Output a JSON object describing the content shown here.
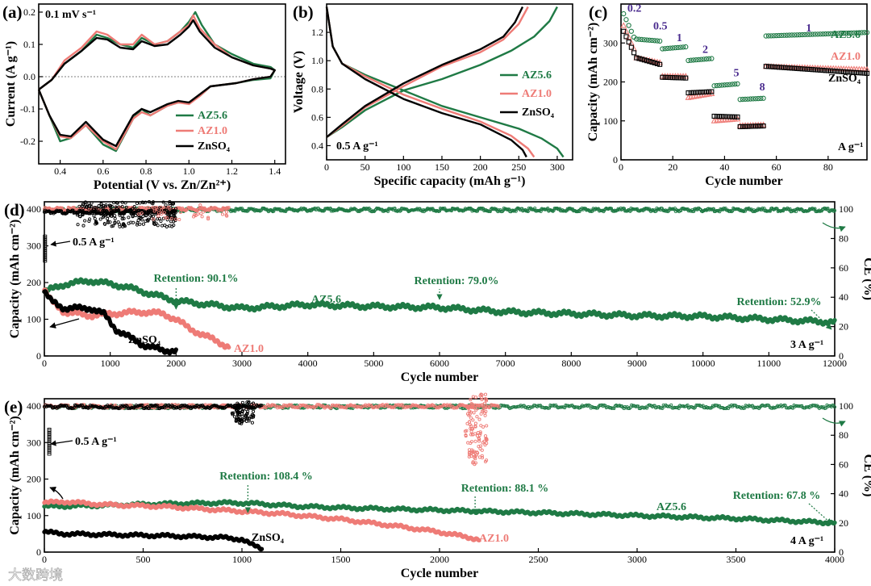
{
  "colors": {
    "az56": "#1f7a45",
    "az10": "#ee7b76",
    "znso4": "#000000",
    "c_label": "#4b2c8f"
  },
  "watermark": "大数跨境",
  "chart_data": [
    {
      "id": "a",
      "panel_label": "(a)",
      "type": "line",
      "title": "0.1 mV s⁻¹",
      "xlabel": "Potential (V vs. Zn/Zn²⁺)",
      "ylabel": "Current (A g⁻¹)",
      "xlim": [
        0.3,
        1.45
      ],
      "ylim": [
        -0.27,
        0.225
      ],
      "xticks": [
        0.4,
        0.6,
        0.8,
        1.0,
        1.2,
        1.4
      ],
      "yticks": [
        -0.2,
        -0.1,
        0.0,
        0.1,
        0.2
      ],
      "xtick_labels": [
        "0.4",
        "0.6",
        "0.8",
        "1.0",
        "1.2",
        "1.4"
      ],
      "ytick_labels": [
        "-0.2",
        "-0.1",
        "0.0",
        "0.1",
        "0.2"
      ],
      "legend": [
        "AZ5.6",
        "AZ1.0",
        "ZnSO₄"
      ],
      "series": [
        {
          "name": "AZ5.6",
          "x": [
            0.3,
            0.36,
            0.42,
            0.5,
            0.57,
            0.62,
            0.68,
            0.74,
            0.78,
            0.84,
            0.9,
            0.96,
            1.0,
            1.03,
            1.06,
            1.12,
            1.2,
            1.3,
            1.38,
            1.4,
            1.38,
            1.3,
            1.22,
            1.1,
            1.05,
            1.0,
            0.95,
            0.9,
            0.82,
            0.78,
            0.74,
            0.66,
            0.6,
            0.52,
            0.45,
            0.4,
            0.35,
            0.3
          ],
          "y": [
            -0.04,
            -0.01,
            0.04,
            0.08,
            0.13,
            0.12,
            0.1,
            0.09,
            0.12,
            0.1,
            0.11,
            0.14,
            0.17,
            0.2,
            0.16,
            0.1,
            0.07,
            0.04,
            0.03,
            0.02,
            -0.005,
            -0.01,
            -0.02,
            -0.03,
            -0.06,
            -0.08,
            -0.08,
            -0.09,
            -0.12,
            -0.1,
            -0.13,
            -0.23,
            -0.21,
            -0.15,
            -0.19,
            -0.2,
            -0.12,
            -0.04
          ]
        },
        {
          "name": "AZ1.0",
          "x": [
            0.3,
            0.36,
            0.42,
            0.5,
            0.57,
            0.62,
            0.68,
            0.74,
            0.78,
            0.84,
            0.9,
            0.96,
            1.0,
            1.02,
            1.05,
            1.12,
            1.2,
            1.3,
            1.38,
            1.4,
            1.38,
            1.3,
            1.22,
            1.1,
            1.05,
            1.0,
            0.95,
            0.9,
            0.82,
            0.78,
            0.74,
            0.66,
            0.6,
            0.52,
            0.45,
            0.4,
            0.35,
            0.3
          ],
          "y": [
            -0.04,
            -0.01,
            0.05,
            0.09,
            0.14,
            0.13,
            0.1,
            0.1,
            0.13,
            0.1,
            0.11,
            0.14,
            0.16,
            0.19,
            0.15,
            0.1,
            0.06,
            0.035,
            0.025,
            0.02,
            0.0,
            -0.008,
            -0.02,
            -0.03,
            -0.06,
            -0.085,
            -0.08,
            -0.09,
            -0.12,
            -0.11,
            -0.13,
            -0.225,
            -0.2,
            -0.15,
            -0.19,
            -0.185,
            -0.12,
            -0.04
          ]
        },
        {
          "name": "ZnSO₄",
          "x": [
            0.3,
            0.36,
            0.42,
            0.5,
            0.57,
            0.62,
            0.68,
            0.74,
            0.78,
            0.84,
            0.9,
            0.96,
            1.0,
            1.02,
            1.05,
            1.12,
            1.2,
            1.3,
            1.38,
            1.4,
            1.38,
            1.3,
            1.22,
            1.1,
            1.05,
            1.0,
            0.95,
            0.9,
            0.82,
            0.78,
            0.74,
            0.66,
            0.6,
            0.52,
            0.45,
            0.4,
            0.35,
            0.3
          ],
          "y": [
            -0.04,
            -0.01,
            0.04,
            0.08,
            0.12,
            0.115,
            0.09,
            0.085,
            0.11,
            0.095,
            0.1,
            0.13,
            0.155,
            0.175,
            0.14,
            0.09,
            0.06,
            0.035,
            0.025,
            0.02,
            0.0,
            -0.008,
            -0.02,
            -0.03,
            -0.055,
            -0.08,
            -0.075,
            -0.085,
            -0.11,
            -0.1,
            -0.12,
            -0.215,
            -0.195,
            -0.14,
            -0.185,
            -0.18,
            -0.12,
            -0.04
          ]
        }
      ]
    },
    {
      "id": "b",
      "panel_label": "(b)",
      "type": "line",
      "xlabel": "Specific capacity (mAh g⁻¹)",
      "ylabel": "Voltage (V)",
      "xlim": [
        0,
        320
      ],
      "ylim": [
        0.3,
        1.4
      ],
      "xticks": [
        0,
        50,
        100,
        150,
        200,
        250,
        300
      ],
      "yticks": [
        0.4,
        0.6,
        0.8,
        1.0,
        1.2
      ],
      "xtick_labels": [
        "0",
        "50",
        "100",
        "150",
        "200",
        "250",
        "300"
      ],
      "ytick_labels": [
        "0.4",
        "0.6",
        "0.8",
        "1.0",
        "1.2"
      ],
      "annotation": "0.5 A g⁻¹",
      "legend": [
        "AZ5.6",
        "AZ1.0",
        "ZnSO₄"
      ],
      "series": [
        {
          "name": "AZ5.6 charge",
          "x": [
            0,
            20,
            50,
            100,
            150,
            200,
            240,
            270,
            290,
            300
          ],
          "y": [
            0.46,
            0.53,
            0.65,
            0.79,
            0.87,
            0.97,
            1.07,
            1.17,
            1.28,
            1.38
          ]
        },
        {
          "name": "AZ5.6 discharge",
          "x": [
            0,
            8,
            20,
            50,
            100,
            150,
            200,
            250,
            280,
            300,
            308
          ],
          "y": [
            1.38,
            1.1,
            0.98,
            0.9,
            0.79,
            0.68,
            0.6,
            0.52,
            0.45,
            0.38,
            0.32
          ]
        },
        {
          "name": "AZ1.0 charge",
          "x": [
            0,
            20,
            50,
            100,
            150,
            200,
            230,
            250,
            262
          ],
          "y": [
            0.46,
            0.54,
            0.67,
            0.82,
            0.96,
            1.06,
            1.15,
            1.26,
            1.38
          ]
        },
        {
          "name": "AZ1.0 discharge",
          "x": [
            0,
            8,
            20,
            50,
            100,
            150,
            200,
            240,
            262,
            270
          ],
          "y": [
            1.38,
            1.1,
            0.98,
            0.89,
            0.76,
            0.66,
            0.57,
            0.47,
            0.38,
            0.32
          ]
        },
        {
          "name": "ZnSO₄ charge",
          "x": [
            0,
            20,
            50,
            100,
            150,
            200,
            230,
            245,
            255
          ],
          "y": [
            0.46,
            0.55,
            0.68,
            0.84,
            0.97,
            1.08,
            1.17,
            1.27,
            1.38
          ]
        },
        {
          "name": "ZnSO₄ discharge",
          "x": [
            0,
            8,
            20,
            50,
            100,
            150,
            200,
            240,
            255,
            260
          ],
          "y": [
            1.38,
            1.1,
            0.98,
            0.87,
            0.73,
            0.63,
            0.55,
            0.44,
            0.37,
            0.32
          ]
        }
      ]
    },
    {
      "id": "c",
      "panel_label": "(c)",
      "type": "scatter",
      "xlabel": "Cycle number",
      "ylabel": "Capacity (mAh cm⁻²)",
      "xlim": [
        0,
        95
      ],
      "ylim": [
        0,
        400
      ],
      "xticks": [
        0,
        20,
        40,
        60,
        80
      ],
      "yticks": [
        0,
        100,
        200,
        300
      ],
      "xtick_labels": [
        "0",
        "20",
        "40",
        "60",
        "80"
      ],
      "ytick_labels": [
        "0",
        "100",
        "200",
        "300"
      ],
      "rate_labels": [
        "0.2",
        "0.5",
        "1",
        "2",
        "5",
        "8",
        "1"
      ],
      "unit_label": "A g⁻¹",
      "legend": [
        "AZ5.6",
        "AZ1.0",
        "ZnSO₄"
      ],
      "series": [
        {
          "name": "AZ5.6",
          "segments": [
            {
              "x0": 1,
              "x1": 5,
              "y0": 375,
              "y1": 315
            },
            {
              "x0": 6,
              "x1": 15,
              "y0": 310,
              "y1": 305
            },
            {
              "x0": 16,
              "x1": 25,
              "y0": 285,
              "y1": 290
            },
            {
              "x0": 26,
              "x1": 35,
              "y0": 255,
              "y1": 260
            },
            {
              "x0": 36,
              "x1": 45,
              "y0": 190,
              "y1": 195
            },
            {
              "x0": 46,
              "x1": 55,
              "y0": 155,
              "y1": 158
            },
            {
              "x0": 56,
              "x1": 95,
              "y0": 318,
              "y1": 327
            }
          ]
        },
        {
          "name": "AZ1.0",
          "segments": [
            {
              "x0": 1,
              "x1": 5,
              "y0": 345,
              "y1": 285
            },
            {
              "x0": 6,
              "x1": 15,
              "y0": 262,
              "y1": 250
            },
            {
              "x0": 16,
              "x1": 25,
              "y0": 215,
              "y1": 215
            },
            {
              "x0": 26,
              "x1": 35,
              "y0": 160,
              "y1": 170
            },
            {
              "x0": 36,
              "x1": 45,
              "y0": 100,
              "y1": 105
            },
            {
              "x0": 46,
              "x1": 55,
              "y0": 88,
              "y1": 90
            },
            {
              "x0": 56,
              "x1": 95,
              "y0": 240,
              "y1": 232
            }
          ]
        },
        {
          "name": "ZnSO₄",
          "segments": [
            {
              "x0": 1,
              "x1": 5,
              "y0": 330,
              "y1": 275
            },
            {
              "x0": 6,
              "x1": 15,
              "y0": 262,
              "y1": 245
            },
            {
              "x0": 16,
              "x1": 25,
              "y0": 212,
              "y1": 210
            },
            {
              "x0": 26,
              "x1": 35,
              "y0": 172,
              "y1": 175
            },
            {
              "x0": 36,
              "x1": 45,
              "y0": 112,
              "y1": 110
            },
            {
              "x0": 46,
              "x1": 55,
              "y0": 85,
              "y1": 87
            },
            {
              "x0": 56,
              "x1": 95,
              "y0": 240,
              "y1": 222
            }
          ]
        }
      ]
    },
    {
      "id": "d",
      "panel_label": "(d)",
      "type": "scatter",
      "xlabel": "Cycle number",
      "ylabel": "Capacity (mAh cm⁻²)",
      "y2label": "CE (%)",
      "xlim": [
        0,
        12000
      ],
      "ylim": [
        0,
        420
      ],
      "y2lim": [
        0,
        105
      ],
      "xticks": [
        0,
        1000,
        2000,
        3000,
        4000,
        5000,
        6000,
        7000,
        8000,
        9000,
        10000,
        11000,
        12000
      ],
      "xtick_labels": [
        "0",
        "1000",
        "2000",
        "3000",
        "4000",
        "5000",
        "6000",
        "7000",
        "8000",
        "9000",
        "10000",
        "11000",
        "12000"
      ],
      "yticks": [
        0,
        100,
        200,
        300,
        400
      ],
      "ytick_labels": [
        "0",
        "100",
        "200",
        "300",
        "400"
      ],
      "y2ticks": [
        0,
        20,
        40,
        60,
        80,
        100
      ],
      "y2tick_labels": [
        "0",
        "20",
        "40",
        "60",
        "80",
        "100"
      ],
      "annotations": {
        "activation": "0.5 A g⁻¹",
        "rate": "3 A g⁻¹",
        "znso4": "ZnSO₄",
        "az10": "AZ1.0",
        "az56": "AZ5.6"
      },
      "retention": [
        {
          "label": "Retention: 90.1%",
          "x": 2000
        },
        {
          "label": "Retention: 79.0%",
          "x": 6000
        },
        {
          "label": "Retention: 52.9%",
          "x": 12000
        }
      ],
      "series": [
        {
          "name": "AZ5.6",
          "x": [
            0,
            300,
            700,
            1200,
            1500,
            2000,
            3000,
            4000,
            5000,
            6000,
            7000,
            8000,
            9000,
            10000,
            11000,
            12000
          ],
          "y": [
            175,
            195,
            205,
            190,
            175,
            150,
            130,
            140,
            135,
            132,
            120,
            115,
            110,
            108,
            100,
            92
          ]
        },
        {
          "name": "AZ1.0",
          "x": [
            0,
            100,
            300,
            700,
            1000,
            1500,
            1800,
            2000,
            2200,
            2500,
            2800
          ],
          "y": [
            180,
            150,
            120,
            110,
            115,
            120,
            115,
            100,
            75,
            50,
            25
          ]
        },
        {
          "name": "ZnSO₄",
          "x": [
            0,
            100,
            300,
            700,
            900,
            1100,
            1500,
            1800,
            2000
          ],
          "y": [
            175,
            150,
            130,
            130,
            115,
            70,
            30,
            15,
            15
          ]
        },
        {
          "name": "AZ5.6 CE",
          "x": [
            0,
            12000
          ],
          "y": [
            99.5,
            99.5
          ]
        },
        {
          "name": "AZ1.0 CE",
          "x": [
            0,
            2800
          ],
          "y": [
            100,
            100
          ]
        },
        {
          "name": "ZnSO₄ CE",
          "x": [
            0,
            2000
          ],
          "y": [
            98,
            98
          ]
        }
      ]
    },
    {
      "id": "e",
      "panel_label": "(e)",
      "type": "scatter",
      "xlabel": "Cycle number",
      "ylabel": "Capacity (mAh cm⁻²)",
      "y2label": "CE (%)",
      "xlim": [
        0,
        4000
      ],
      "ylim": [
        0,
        420
      ],
      "y2lim": [
        0,
        105
      ],
      "xticks": [
        0,
        500,
        1000,
        1500,
        2000,
        2500,
        3000,
        3500,
        4000
      ],
      "xtick_labels": [
        "0",
        "500",
        "1000",
        "1500",
        "2000",
        "2500",
        "3000",
        "3500",
        "4000"
      ],
      "yticks": [
        0,
        100,
        200,
        300,
        400
      ],
      "ytick_labels": [
        "0",
        "100",
        "200",
        "300",
        "400"
      ],
      "y2ticks": [
        0,
        20,
        40,
        60,
        80,
        100
      ],
      "y2tick_labels": [
        "0",
        "20",
        "40",
        "60",
        "80",
        "100"
      ],
      "annotations": {
        "activation": "0.5 A g⁻¹",
        "rate": "4 A g⁻¹",
        "znso4": "ZnSO₄",
        "az10": "AZ1.0",
        "az56": "AZ5.6"
      },
      "retention": [
        {
          "label": "Retention: 108.4 %",
          "x": 1030
        },
        {
          "label": "Retention: 88.1 %",
          "x": 2180
        },
        {
          "label": "Retention: 67.8 %",
          "x": 4000
        }
      ],
      "series": [
        {
          "name": "AZ5.6",
          "x": [
            0,
            300,
            600,
            900,
            1030,
            1300,
            1600,
            2000,
            2200,
            2500,
            3000,
            3500,
            4000
          ],
          "y": [
            125,
            128,
            132,
            135,
            134,
            125,
            120,
            115,
            112,
            108,
            100,
            92,
            80
          ]
        },
        {
          "name": "AZ1.0",
          "x": [
            0,
            100,
            300,
            600,
            900,
            1200,
            1500,
            1800,
            2000,
            2150,
            2200
          ],
          "y": [
            135,
            138,
            130,
            125,
            115,
            105,
            90,
            70,
            55,
            40,
            35
          ]
        },
        {
          "name": "ZnSO₄",
          "x": [
            0,
            100,
            300,
            600,
            900,
            1000,
            1050,
            1100
          ],
          "y": [
            55,
            50,
            48,
            45,
            40,
            35,
            20,
            10
          ]
        },
        {
          "name": "AZ5.6 CE",
          "x": [
            0,
            4000
          ],
          "y": [
            99.5,
            99.5
          ]
        },
        {
          "name": "AZ1.0 CE",
          "x": [
            0,
            2300
          ],
          "y": [
            99.8,
            99.8
          ]
        },
        {
          "name": "ZnSO₄ CE",
          "x": [
            0,
            1100
          ],
          "y": [
            99.5,
            99.5
          ]
        }
      ]
    }
  ]
}
